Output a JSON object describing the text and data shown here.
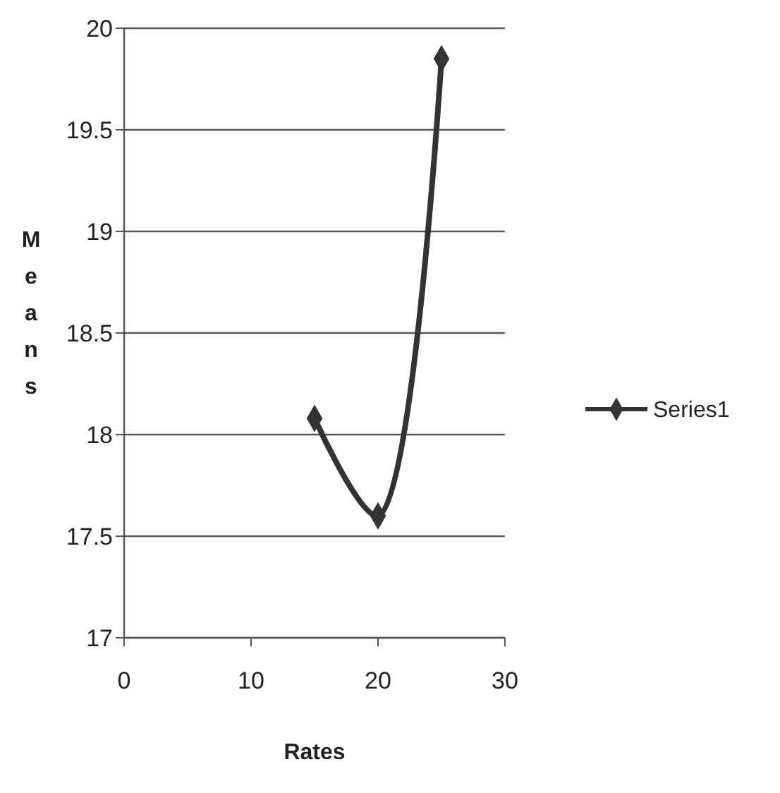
{
  "chart_data": {
    "type": "line",
    "xlabel": "Rates",
    "ylabel": "Means",
    "x": [
      15,
      20,
      25
    ],
    "series": [
      {
        "name": "Series1",
        "color": "#333333",
        "values": [
          18.08,
          17.6,
          19.85
        ]
      }
    ],
    "xlim": [
      0,
      30
    ],
    "xticks": [
      0,
      10,
      20,
      30
    ],
    "ylim": [
      17,
      20
    ],
    "yticks": [
      17,
      17.5,
      18,
      18.5,
      19,
      19.5,
      20
    ],
    "grid": "y",
    "legend": "right",
    "marker": "diamond",
    "line_style": "solid"
  }
}
